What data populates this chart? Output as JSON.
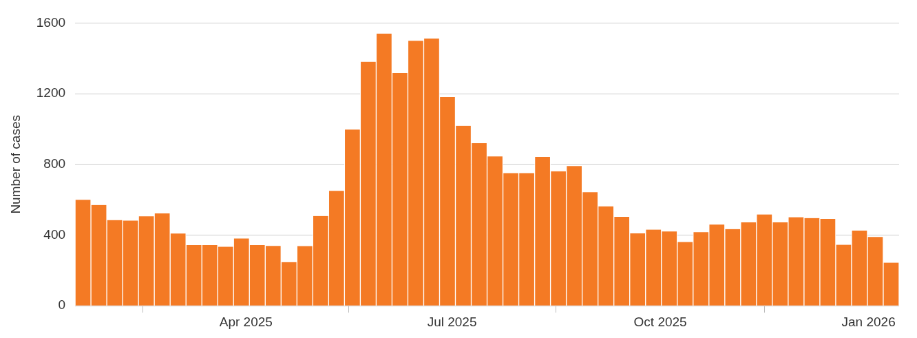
{
  "chart_data": {
    "type": "bar",
    "ylabel": "Number of cases",
    "x": [
      "2025-01-19",
      "2025-01-26",
      "2025-02-02",
      "2025-02-09",
      "2025-02-16",
      "2025-02-23",
      "2025-03-02",
      "2025-03-09",
      "2025-03-16",
      "2025-03-23",
      "2025-03-30",
      "2025-04-06",
      "2025-04-13",
      "2025-04-20",
      "2025-04-27",
      "2025-05-04",
      "2025-05-11",
      "2025-05-18",
      "2025-05-25",
      "2025-06-01",
      "2025-06-08",
      "2025-06-15",
      "2025-06-22",
      "2025-06-29",
      "2025-07-06",
      "2025-07-13",
      "2025-07-20",
      "2025-07-27",
      "2025-08-03",
      "2025-08-10",
      "2025-08-17",
      "2025-08-24",
      "2025-08-31",
      "2025-09-07",
      "2025-09-14",
      "2025-09-21",
      "2025-09-28",
      "2025-10-05",
      "2025-10-12",
      "2025-10-19",
      "2025-10-26",
      "2025-11-02",
      "2025-11-09",
      "2025-11-16",
      "2025-11-23",
      "2025-11-30",
      "2025-12-07",
      "2025-12-14",
      "2025-12-21",
      "2025-12-28",
      "2026-01-04",
      "2026-01-11"
    ],
    "values": [
      600,
      570,
      485,
      482,
      506,
      523,
      409,
      344,
      344,
      334,
      381,
      344,
      339,
      247,
      338,
      508,
      650,
      997,
      1381,
      1540,
      1317,
      1499,
      1512,
      1181,
      1018,
      920,
      845,
      751,
      751,
      842,
      761,
      790,
      642,
      563,
      503,
      410,
      431,
      420,
      361,
      417,
      459,
      434,
      472,
      517,
      472,
      501,
      496,
      492,
      345,
      425,
      389,
      244
    ],
    "color": "#f47a24",
    "xlim": [
      "2025-01-15T12:00",
      "2026-01-14T12:00"
    ],
    "xticks": [
      {
        "value": "2025-04-01",
        "label": "Apr 2025"
      },
      {
        "value": "2025-07-01",
        "label": "Jul 2025"
      },
      {
        "value": "2025-10-01",
        "label": "Oct 2025"
      },
      {
        "value": "2026-01-01",
        "label": "Jan 2026"
      }
    ],
    "ylim": [
      0,
      1600
    ],
    "yticks": [
      0,
      400,
      800,
      1200,
      1600
    ],
    "grid": "y"
  }
}
